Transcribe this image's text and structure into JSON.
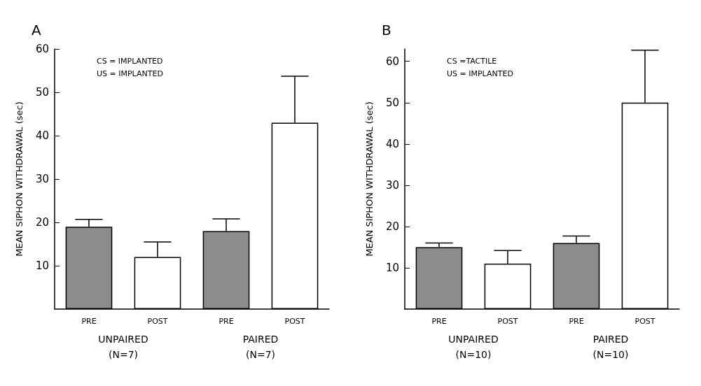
{
  "chart_data": [
    {
      "type": "bar",
      "title": "A",
      "ylabel": "MEAN SIPHON WITHDRAWAL (sec)",
      "categories": [
        "PRE",
        "POST",
        "PRE",
        "POST"
      ],
      "values": [
        19,
        12,
        18,
        43
      ],
      "colors": [
        "#8c8c8c",
        "#ffffff",
        "#8c8c8c",
        "#ffffff"
      ],
      "errors": [
        [
          19,
          20.7
        ],
        [
          12,
          15.5
        ],
        [
          18,
          20.8
        ],
        [
          43,
          53.7
        ]
      ],
      "ylim": [
        0,
        60
      ],
      "yticks": [
        10,
        20,
        30,
        40,
        50,
        60
      ],
      "grid": false,
      "annotations": [
        "CS = IMPLANTED\nUS = IMPLANTED",
        "UNPAIRED\n(N=7)",
        "PAIRED\n(N=7)"
      ]
    },
    {
      "type": "bar",
      "title": "B",
      "ylabel": "MEAN SIPHON WITHDRAWAL (sec)",
      "categories": [
        "PRE",
        "POST",
        "PRE",
        "POST"
      ],
      "values": [
        15,
        11,
        16,
        50
      ],
      "colors": [
        "#8c8c8c",
        "#ffffff",
        "#8c8c8c",
        "#ffffff"
      ],
      "errors": [
        [
          15,
          16
        ],
        [
          11,
          14.2
        ],
        [
          16,
          17.7
        ],
        [
          50,
          62.7
        ]
      ],
      "ylim": [
        0,
        63
      ],
      "yticks": [
        10,
        20,
        30,
        40,
        50,
        60
      ],
      "grid": false,
      "annotations": [
        "CS =TACTILE\nUS = IMPLANTED",
        "UNPAIRED\n(N=10)",
        "PAIRED\n(N=10)"
      ]
    }
  ]
}
